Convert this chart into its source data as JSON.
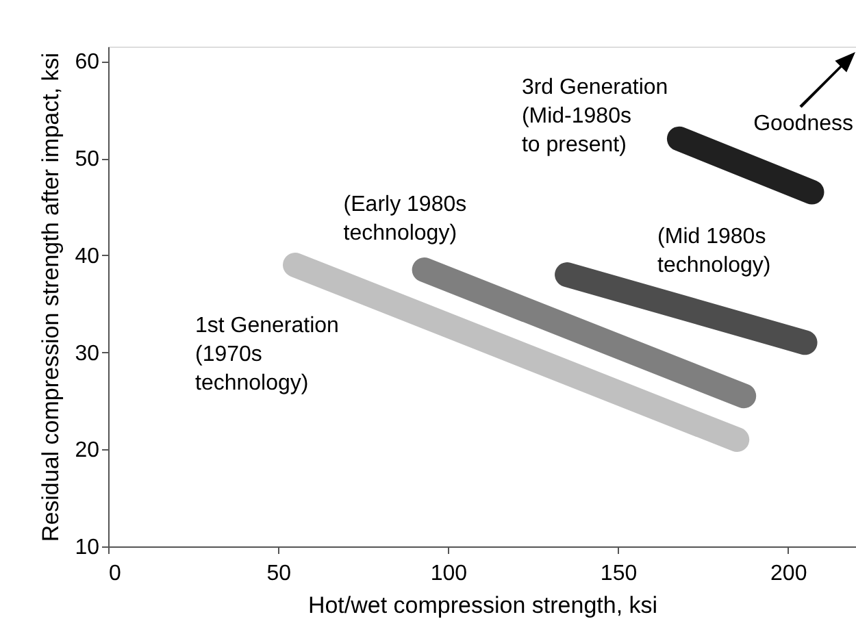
{
  "chart_data": {
    "type": "line",
    "xlabel": "Hot/wet compression strength, ksi",
    "ylabel": "Residual compression strength after impact, ksi",
    "xlim": [
      0,
      220
    ],
    "ylim": [
      10,
      61.5
    ],
    "xticks": [
      0,
      50,
      100,
      150,
      200
    ],
    "yticks": [
      10,
      20,
      30,
      40,
      50,
      60
    ],
    "grid": false,
    "marker": "none",
    "line_style": "solid",
    "series": [
      {
        "name": "1st Generation\n(1970s\ntechnology)",
        "color": "#c0c0c0",
        "x": [
          55,
          185
        ],
        "values": [
          39,
          21
        ]
      },
      {
        "name": "(Early 1980s\ntechnology)",
        "color": "#7f7f7f",
        "x": [
          93,
          187
        ],
        "values": [
          38.5,
          25.5
        ]
      },
      {
        "name": "(Mid 1980s\ntechnology)",
        "color": "#4d4d4d",
        "x": [
          135,
          205
        ],
        "values": [
          38,
          31
        ]
      },
      {
        "name": "3rd Generation\n(Mid-1980s\nto present)",
        "color": "#202020",
        "x": [
          168,
          207
        ],
        "values": [
          52,
          46.5
        ]
      }
    ],
    "annotations": [
      "Goodness"
    ]
  }
}
